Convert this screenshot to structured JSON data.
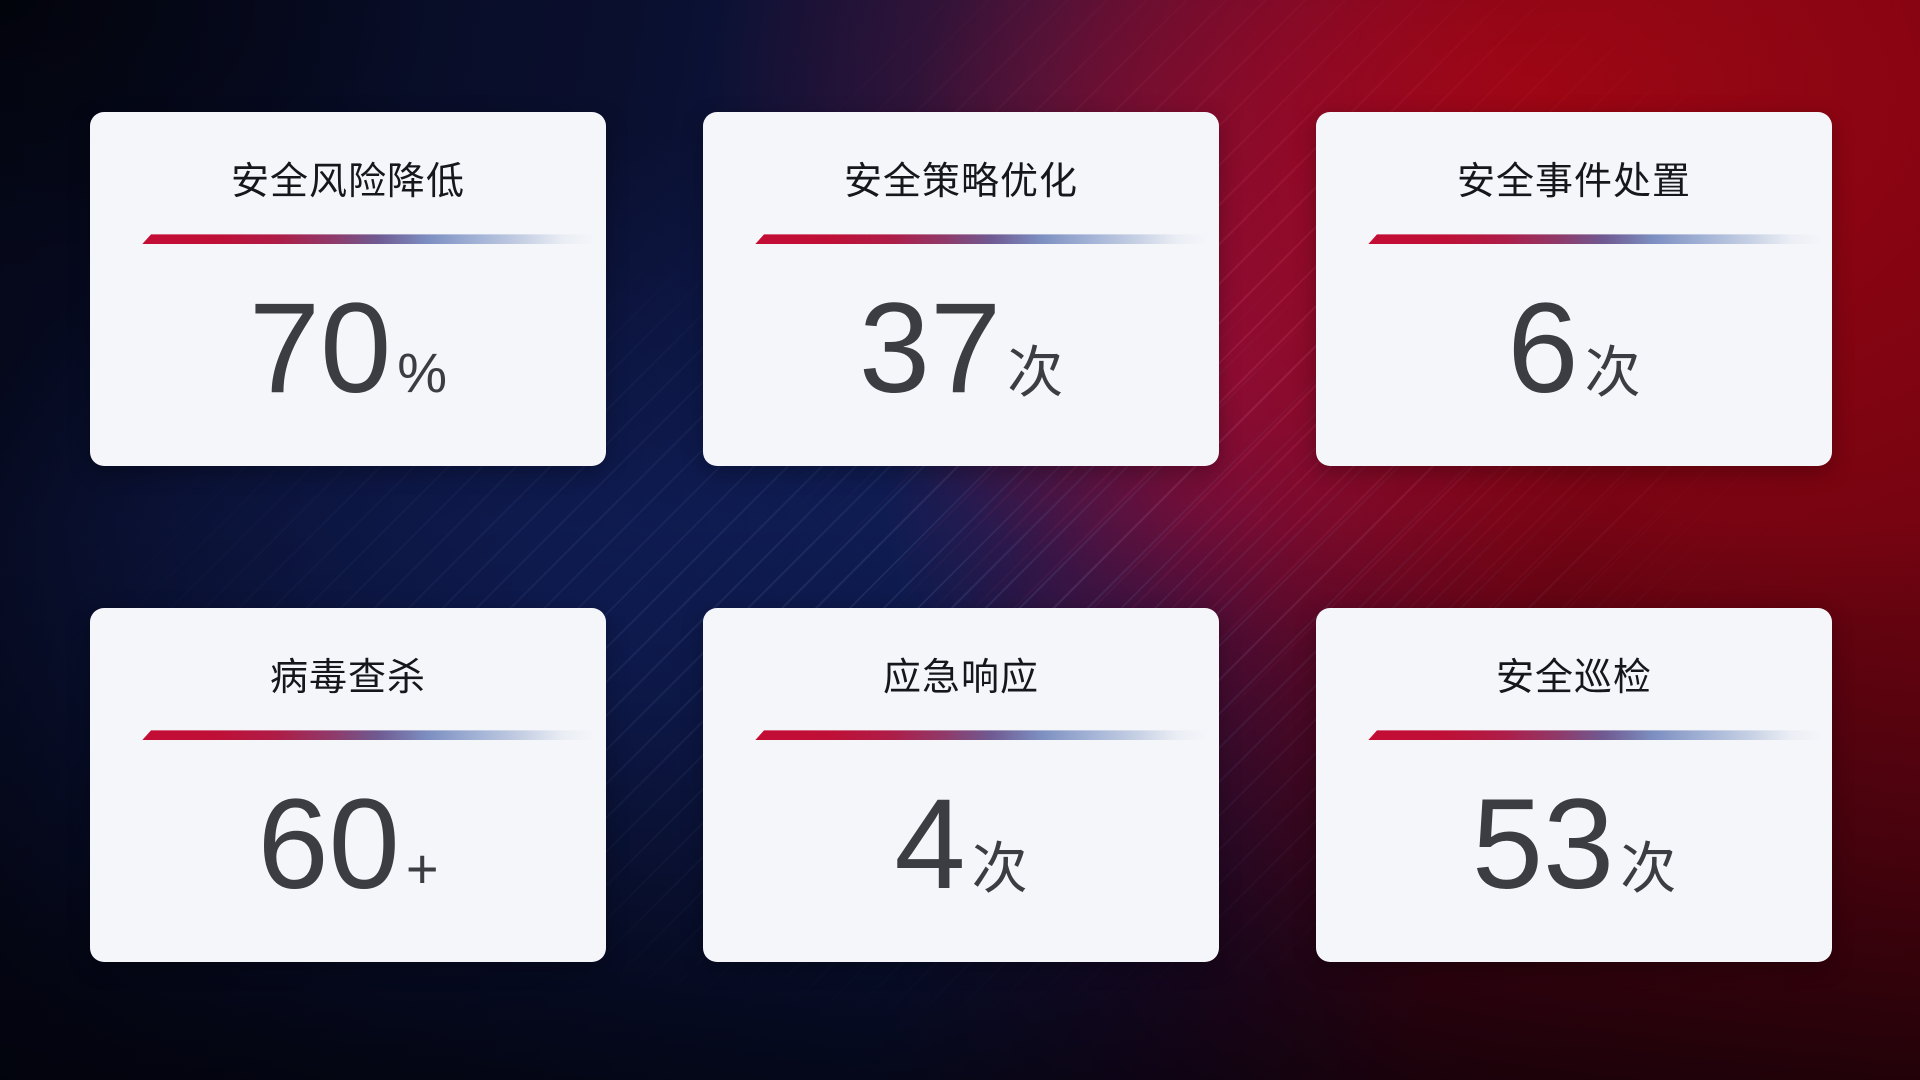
{
  "dashboard": {
    "theme": {
      "card_background": "#f5f6fa",
      "title_color": "#16171c",
      "value_color": "#3c3d43",
      "divider_gradient_start": "#c30d33",
      "divider_gradient_mid": "#7d8fc1",
      "background_navy": "#0a0f2e",
      "background_blue": "#10205e",
      "background_red": "#8f040f",
      "background_crimson": "#bb0c38"
    },
    "cards": [
      {
        "title": "安全风险降低",
        "value": "70",
        "unit": "%"
      },
      {
        "title": "安全策略优化",
        "value": "37",
        "unit": "次"
      },
      {
        "title": "安全事件处置",
        "value": "6",
        "unit": "次"
      },
      {
        "title": "病毒查杀",
        "value": "60",
        "unit": "+"
      },
      {
        "title": "应急响应",
        "value": "4",
        "unit": "次"
      },
      {
        "title": "安全巡检",
        "value": "53",
        "unit": "次"
      }
    ]
  }
}
